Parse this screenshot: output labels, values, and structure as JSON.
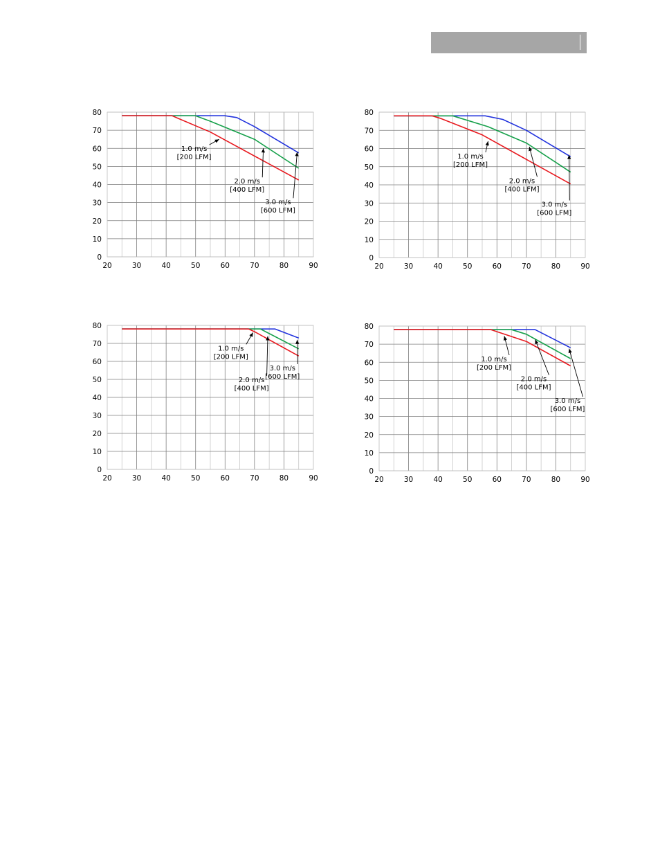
{
  "colors": {
    "s1": "#2233dd",
    "s2": "#16a04a",
    "s3": "#e8181e",
    "grid": "#c8c8c8",
    "grid_major": "#7f7f7f",
    "header": "#a6a6a6"
  },
  "chart_data": [
    {
      "type": "line",
      "xlim": [
        20,
        90
      ],
      "ylim": [
        0,
        80
      ],
      "xticks": [
        20,
        30,
        40,
        50,
        60,
        70,
        80,
        90
      ],
      "yticks": [
        0,
        10,
        20,
        30,
        40,
        50,
        60,
        70,
        80
      ],
      "series": [
        {
          "color": "#2233dd",
          "points": [
            [
              25,
              78
            ],
            [
              60,
              78
            ],
            [
              64,
              77
            ],
            [
              70,
              72
            ],
            [
              85,
              57.5
            ]
          ]
        },
        {
          "color": "#16a04a",
          "points": [
            [
              25,
              78
            ],
            [
              50,
              78
            ],
            [
              55,
              75
            ],
            [
              70,
              65
            ],
            [
              85,
              49
            ]
          ]
        },
        {
          "color": "#e8181e",
          "points": [
            [
              25,
              78
            ],
            [
              42,
              78
            ],
            [
              55,
              69
            ],
            [
              85,
              42.5
            ]
          ]
        }
      ],
      "annotations": [
        {
          "lines": [
            "1.0 m/s",
            "[200 LFM]"
          ],
          "at": [
            58,
            65
          ],
          "label": [
            49.5,
            58.5
          ]
        },
        {
          "lines": [
            "2.0 m/s",
            "[400 LFM]"
          ],
          "at": [
            73,
            60
          ],
          "label": [
            67.5,
            40.5
          ]
        },
        {
          "lines": [
            "3.0 m/s",
            "[600 LFM]"
          ],
          "at": [
            84.5,
            58
          ],
          "label": [
            78,
            29
          ]
        }
      ]
    },
    {
      "type": "line",
      "xlim": [
        20,
        90
      ],
      "ylim": [
        0,
        80
      ],
      "xticks": [
        20,
        30,
        40,
        50,
        60,
        70,
        80,
        90
      ],
      "yticks": [
        0,
        10,
        20,
        30,
        40,
        50,
        60,
        70,
        80
      ],
      "series": [
        {
          "color": "#2233dd",
          "points": [
            [
              25,
              78
            ],
            [
              56,
              78
            ],
            [
              62,
              76
            ],
            [
              70,
              70
            ],
            [
              85,
              55.5
            ]
          ]
        },
        {
          "color": "#16a04a",
          "points": [
            [
              25,
              78
            ],
            [
              45,
              78
            ],
            [
              57,
              72
            ],
            [
              70,
              63
            ],
            [
              85,
              47
            ]
          ]
        },
        {
          "color": "#e8181e",
          "points": [
            [
              25,
              78
            ],
            [
              38,
              78
            ],
            [
              41,
              76.5
            ],
            [
              55,
              67.5
            ],
            [
              85,
              40.5
            ]
          ]
        }
      ],
      "annotations": [
        {
          "lines": [
            "1.0 m/s",
            "[200 LFM]"
          ],
          "at": [
            57,
            64
          ],
          "label": [
            51,
            54.5
          ]
        },
        {
          "lines": [
            "2.0 m/s",
            "[400 LFM]"
          ],
          "at": [
            71,
            61
          ],
          "label": [
            68.5,
            41
          ]
        },
        {
          "lines": [
            "3.0 m/s",
            "[600 LFM]"
          ],
          "at": [
            84.5,
            56.5
          ],
          "label": [
            79.5,
            28
          ]
        }
      ]
    },
    {
      "type": "line",
      "xlim": [
        20,
        90
      ],
      "ylim": [
        0,
        80
      ],
      "xticks": [
        20,
        30,
        40,
        50,
        60,
        70,
        80,
        90
      ],
      "yticks": [
        0,
        10,
        20,
        30,
        40,
        50,
        60,
        70,
        80
      ],
      "series": [
        {
          "color": "#2233dd",
          "points": [
            [
              25,
              78
            ],
            [
              77,
              78
            ],
            [
              85,
              73
            ]
          ]
        },
        {
          "color": "#16a04a",
          "points": [
            [
              25,
              78
            ],
            [
              72,
              78
            ],
            [
              85,
              67
            ]
          ]
        },
        {
          "color": "#e8181e",
          "points": [
            [
              25,
              78
            ],
            [
              68,
              78
            ],
            [
              70,
              76.5
            ],
            [
              85,
              63
            ]
          ]
        }
      ],
      "annotations": [
        {
          "lines": [
            "1.0 m/s",
            "[200 LFM]"
          ],
          "at": [
            69.5,
            76
          ],
          "label": [
            62,
            66
          ]
        },
        {
          "lines": [
            "2.0 m/s",
            "[400 LFM]"
          ],
          "at": [
            74.5,
            74
          ],
          "label": [
            69,
            48.5
          ]
        },
        {
          "lines": [
            "3.0 m/s",
            "[600 LFM]"
          ],
          "at": [
            84.5,
            72
          ],
          "label": [
            79.5,
            55
          ]
        }
      ]
    },
    {
      "type": "line",
      "xlim": [
        20,
        90
      ],
      "ylim": [
        0,
        80
      ],
      "xticks": [
        20,
        30,
        40,
        50,
        60,
        70,
        80,
        90
      ],
      "yticks": [
        0,
        10,
        20,
        30,
        40,
        50,
        60,
        70,
        80
      ],
      "series": [
        {
          "color": "#2233dd",
          "points": [
            [
              25,
              78
            ],
            [
              73,
              78
            ],
            [
              85,
              68
            ]
          ]
        },
        {
          "color": "#16a04a",
          "points": [
            [
              25,
              78
            ],
            [
              65,
              78
            ],
            [
              70,
              75.5
            ],
            [
              85,
              62
            ]
          ]
        },
        {
          "color": "#e8181e",
          "points": [
            [
              25,
              78
            ],
            [
              58,
              78
            ],
            [
              70,
              71.5
            ],
            [
              85,
              58
            ]
          ]
        }
      ],
      "annotations": [
        {
          "lines": [
            "1.0 m/s",
            "[200 LFM]"
          ],
          "at": [
            62.5,
            74.5
          ],
          "label": [
            59,
            60.5
          ]
        },
        {
          "lines": [
            "2.0 m/s",
            "[400 LFM]"
          ],
          "at": [
            73,
            72.5
          ],
          "label": [
            72.5,
            49.5
          ]
        },
        {
          "lines": [
            "3.0 m/s",
            "[600 LFM]"
          ],
          "at": [
            84.5,
            67.5
          ],
          "label": [
            84,
            37.5
          ]
        }
      ]
    }
  ]
}
